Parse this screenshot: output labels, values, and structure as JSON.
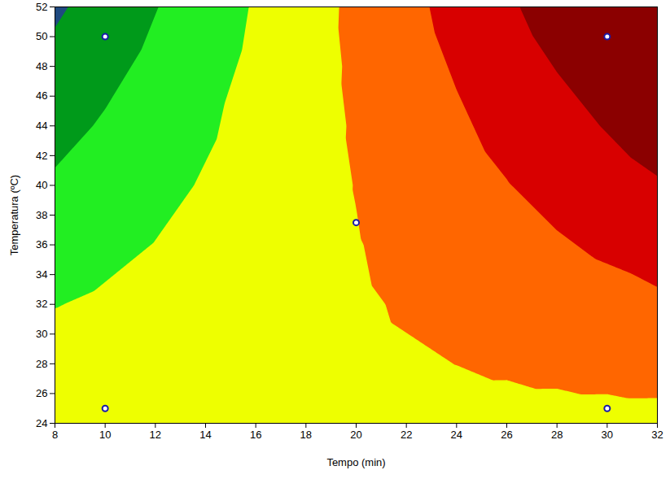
{
  "chart_data": {
    "type": "contour",
    "x_label": "Tempo (min)",
    "y_label": "Temperatura (ºC)",
    "x": [
      8,
      10,
      12,
      14,
      16,
      18,
      20,
      22,
      24,
      26,
      28,
      30,
      32
    ],
    "y": [
      24,
      28,
      32,
      36,
      40,
      44,
      48,
      52
    ],
    "values": [
      [
        2.1,
        1.7,
        1.3,
        0.9,
        0.5,
        0.1,
        -0.3,
        -0.7,
        -1.1,
        -1.5,
        -1.9,
        -2.3,
        -2.7
      ],
      [
        -40.3,
        -32.7,
        -25.1,
        -17.5,
        -9.9,
        -2.3,
        5.3,
        12.9,
        20.5,
        28.1,
        35.7,
        43.3,
        50.9
      ],
      [
        -82.7,
        -67.1,
        -51.5,
        -35.9,
        -20.3,
        -4.7,
        10.9,
        26.5,
        42.1,
        57.7,
        73.3,
        88.9,
        104.5
      ],
      [
        -125.1,
        -101.5,
        -77.9,
        -54.3,
        -30.7,
        -7.1,
        16.5,
        40.1,
        63.7,
        87.3,
        110.9,
        134.5,
        158.1
      ],
      [
        -167.5,
        -135.9,
        -104.3,
        -72.7,
        -41.1,
        -9.5,
        22.1,
        53.7,
        85.3,
        116.9,
        148.5,
        180.1,
        211.7
      ],
      [
        -209.9,
        -170.3,
        -130.7,
        -91.1,
        -51.5,
        -11.9,
        27.7,
        67.3,
        106.9,
        146.5,
        186.1,
        225.7,
        265.3
      ],
      [
        -252.3,
        -204.7,
        -157.1,
        -109.5,
        -61.9,
        -14.3,
        33.3,
        80.9,
        128.5,
        176.1,
        223.7,
        271.3,
        318.9
      ],
      [
        -294.7,
        -239.1,
        -183.5,
        -127.9,
        -72.3,
        -16.7,
        38.9,
        94.5,
        150.1,
        205.7,
        261.3,
        316.9,
        372.5
      ]
    ],
    "levels": [
      -280,
      -180,
      -80,
      20,
      120,
      220
    ],
    "colors": [
      "#1f4a80",
      "#009a1a",
      "#22ee22",
      "#eeff00",
      "#ff6600",
      "#d80000",
      "#8b0000"
    ],
    "points": {
      "x": [
        10,
        10,
        30,
        30,
        20
      ],
      "y": [
        25,
        50,
        25,
        50,
        37.5
      ]
    },
    "xlim": [
      8,
      32
    ],
    "xticks": [
      8,
      10,
      12,
      14,
      16,
      18,
      20,
      22,
      24,
      26,
      28,
      30,
      32
    ],
    "ylim": [
      24,
      52
    ],
    "yticks": [
      24,
      26,
      28,
      30,
      32,
      34,
      36,
      38,
      40,
      42,
      44,
      46,
      48,
      50,
      52
    ],
    "grid": false
  }
}
